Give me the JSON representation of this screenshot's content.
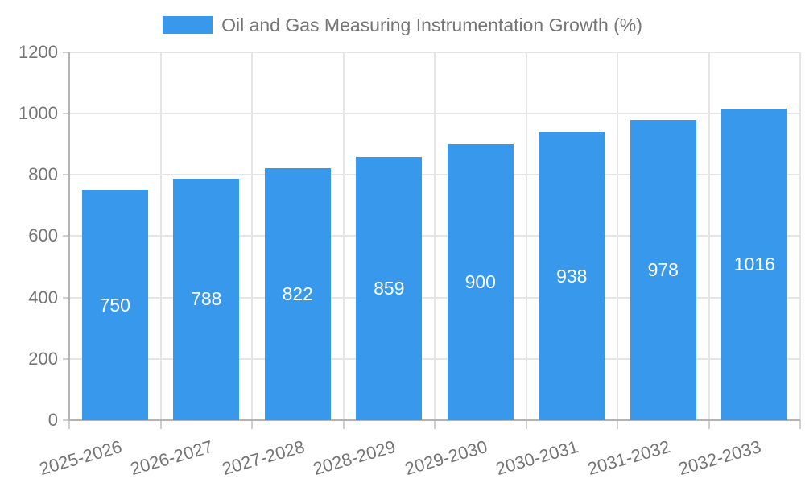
{
  "legend": {
    "label": "Oil and Gas Measuring Instrumentation Growth (%)"
  },
  "chart_data": {
    "type": "bar",
    "title": "",
    "xlabel": "",
    "ylabel": "",
    "categories": [
      "2025-2026",
      "2026-2027",
      "2027-2028",
      "2028-2029",
      "2029-2030",
      "2030-2031",
      "2031-2032",
      "2032-2033"
    ],
    "series": [
      {
        "name": "Oil and Gas Measuring Instrumentation Growth (%)",
        "values": [
          750,
          788,
          822,
          859,
          900,
          938,
          978,
          1016
        ]
      }
    ],
    "value_labels": "inside-center",
    "value_label_color": "#ffffff",
    "bar_color": "#3899ec",
    "ylim": [
      0,
      1200
    ],
    "yticks": [
      0,
      200,
      400,
      600,
      800,
      1000,
      1200
    ],
    "grid": true,
    "x_tick_rotation_deg": -16,
    "legend_position": "top-center"
  },
  "colors": {
    "background": "#ffffff",
    "axis_text": "#757575",
    "legend_text": "#757575",
    "gridline": "#e5e5e5",
    "tick": "#cfcfcf",
    "axis_line": "#b3b3b3"
  }
}
